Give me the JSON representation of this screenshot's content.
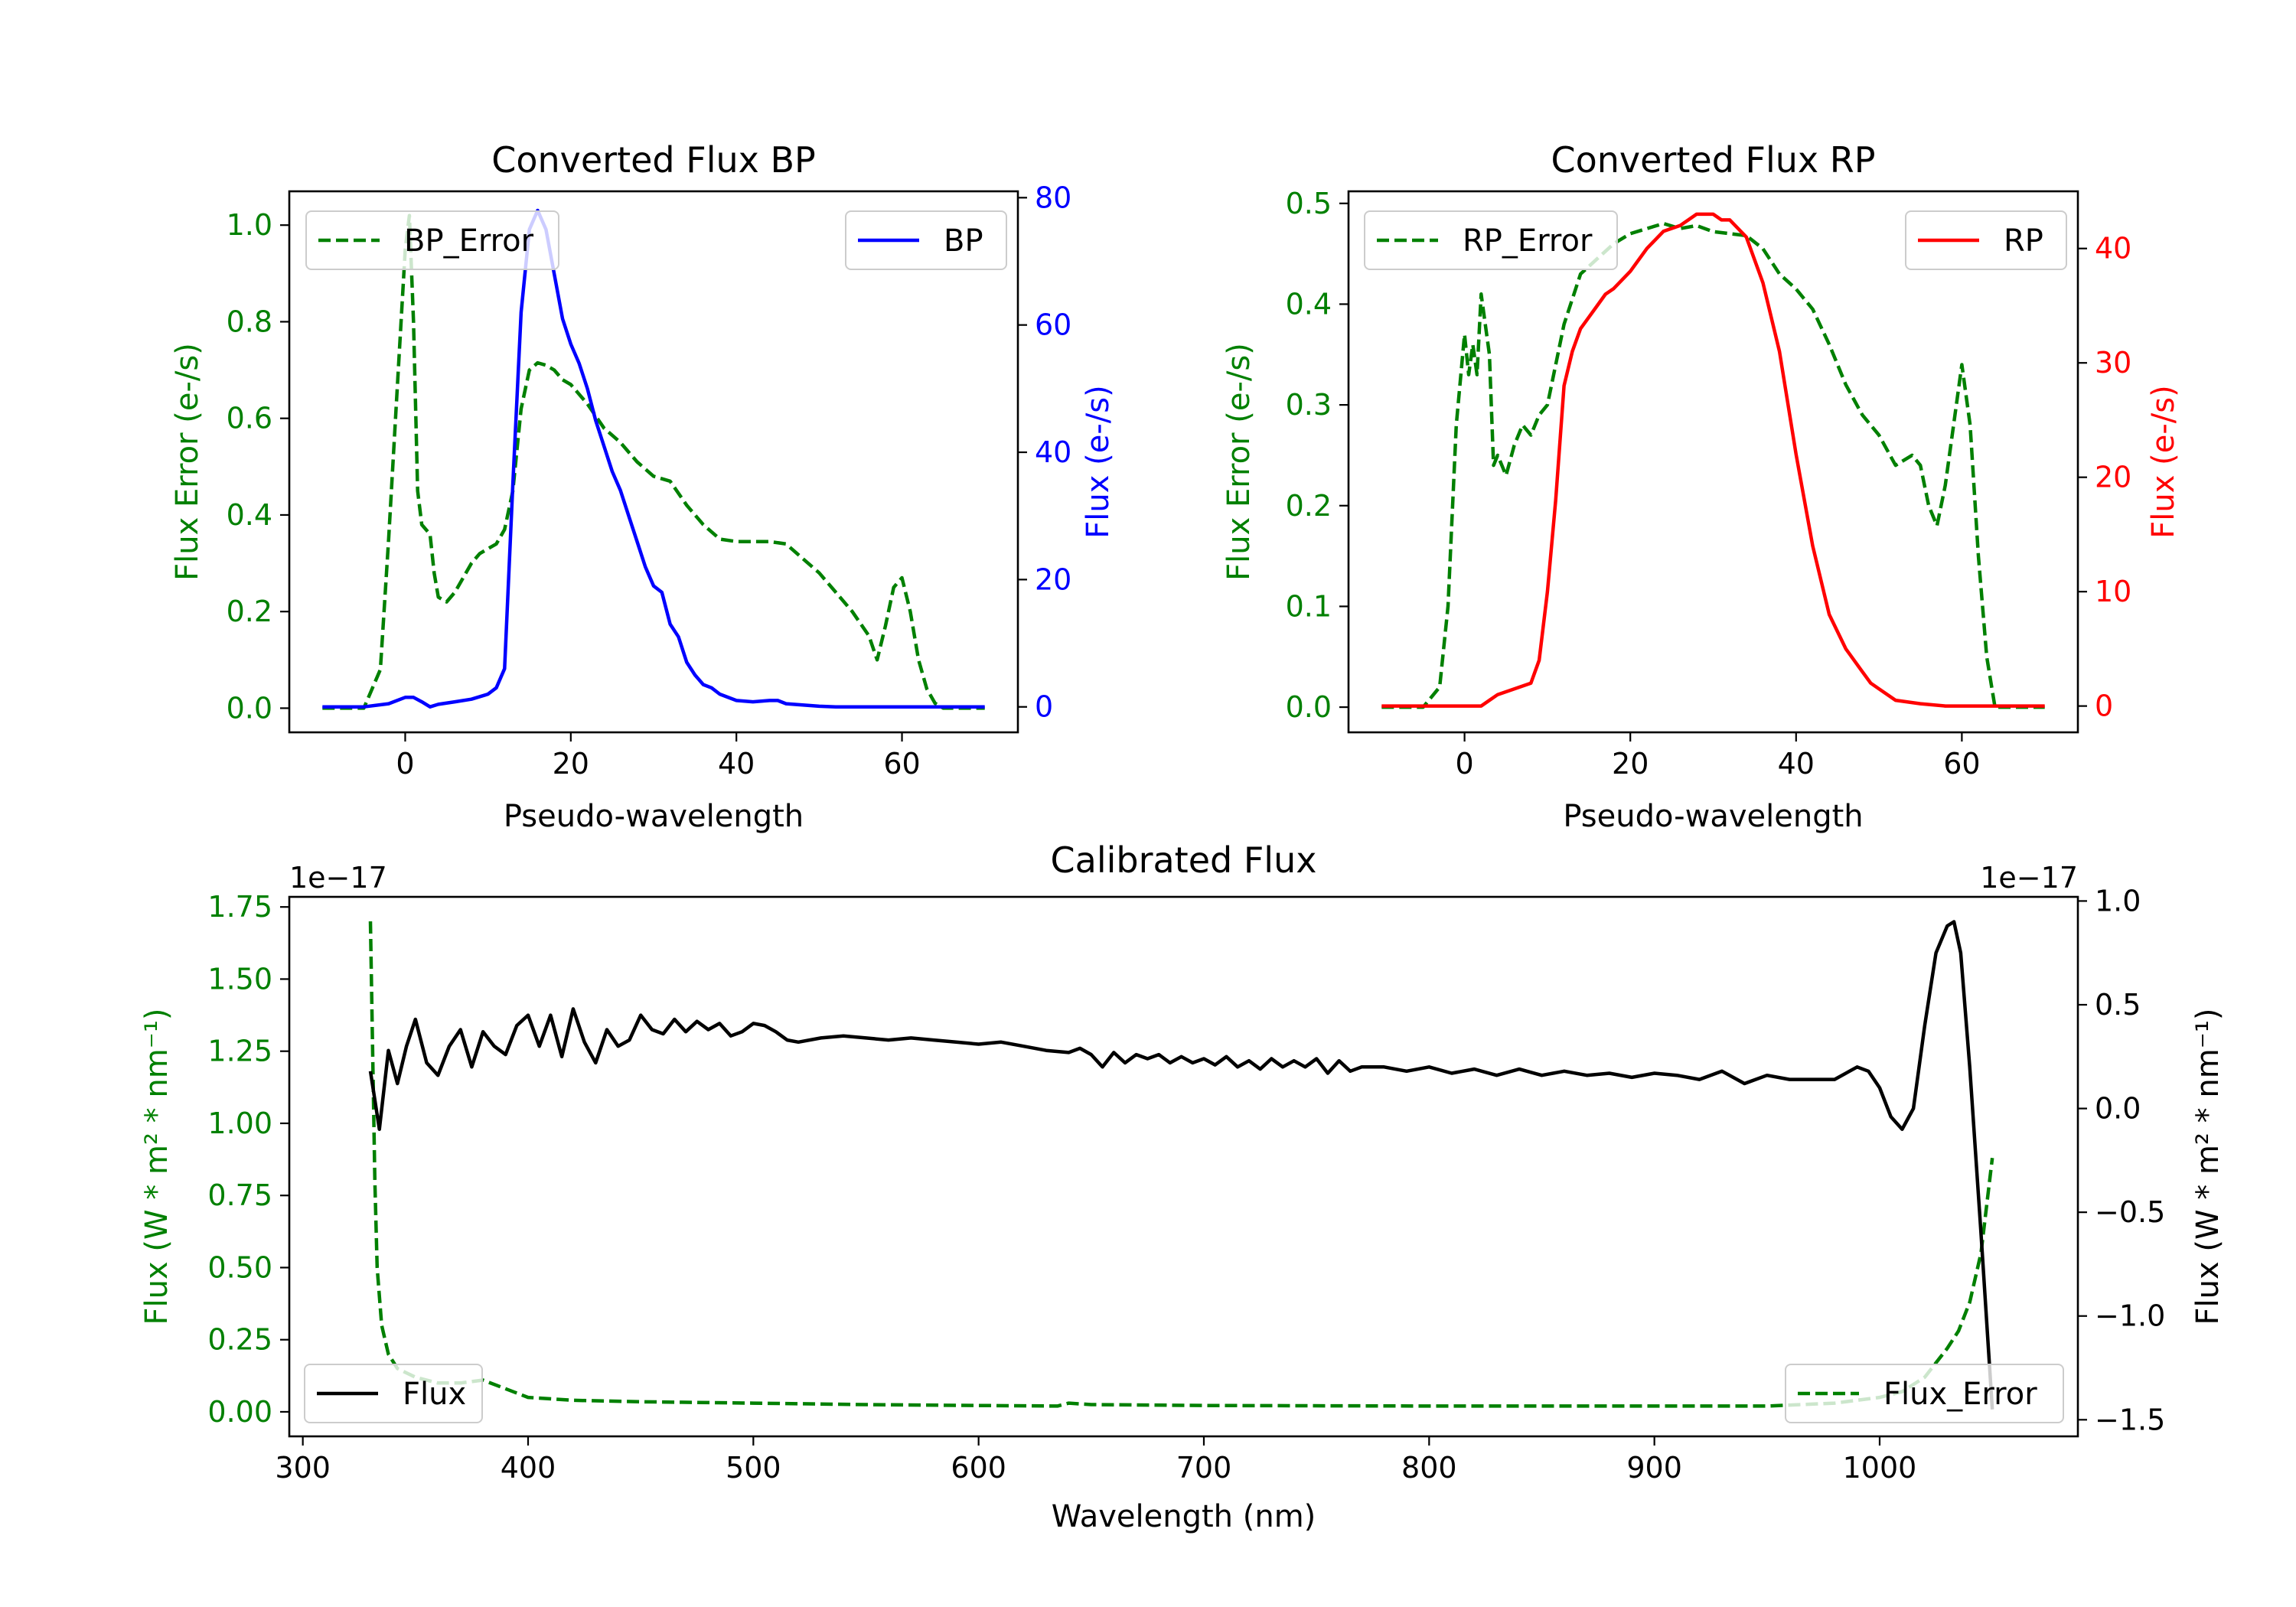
{
  "colors": {
    "error": "#008000",
    "bp": "#0000ff",
    "rp": "#ff0000",
    "flux": "#000000"
  },
  "chart_data": [
    {
      "type": "line",
      "title": "Converted Flux BP",
      "xlabel": "Pseudo-wavelength",
      "ylabel_left": "Flux Error (e-/s)",
      "ylabel_right": "Flux (e-/s)",
      "xlim": [
        -14,
        74
      ],
      "ylim_left": [
        -0.05,
        1.07
      ],
      "ylim_right": [
        -4,
        81
      ],
      "xticks": [
        0,
        20,
        40,
        60
      ],
      "yticks_left": [
        "0.0",
        "0.2",
        "0.4",
        "0.6",
        "0.8",
        "1.0"
      ],
      "yticks_right": [
        "0",
        "20",
        "40",
        "60",
        "80"
      ],
      "legend_left": "BP_Error",
      "legend_right": "BP",
      "series": [
        {
          "name": "BP_Error",
          "axis": "left",
          "style": "dashed",
          "color": "#008000",
          "x": [
            -10,
            -5,
            -3,
            -2,
            -1,
            0,
            0.5,
            1,
            1.5,
            2,
            3,
            3.5,
            4,
            5,
            6,
            7,
            8,
            9,
            10,
            11,
            12,
            13,
            14,
            15,
            16,
            17,
            18,
            19,
            20,
            22,
            24,
            26,
            28,
            30,
            32,
            34,
            36,
            38,
            40,
            42,
            44,
            46,
            48,
            50,
            52,
            54,
            56,
            57,
            58,
            59,
            60,
            61,
            62,
            63,
            64,
            65,
            68,
            70
          ],
          "y": [
            0.0,
            0.0,
            0.08,
            0.35,
            0.65,
            0.95,
            1.02,
            0.8,
            0.45,
            0.38,
            0.36,
            0.28,
            0.23,
            0.22,
            0.24,
            0.27,
            0.3,
            0.32,
            0.33,
            0.34,
            0.37,
            0.45,
            0.62,
            0.7,
            0.715,
            0.71,
            0.7,
            0.68,
            0.67,
            0.63,
            0.58,
            0.55,
            0.51,
            0.48,
            0.47,
            0.42,
            0.38,
            0.35,
            0.345,
            0.345,
            0.345,
            0.34,
            0.31,
            0.28,
            0.24,
            0.2,
            0.15,
            0.1,
            0.17,
            0.25,
            0.27,
            0.2,
            0.1,
            0.04,
            0.01,
            0.0,
            0.0,
            0.0
          ]
        },
        {
          "name": "BP",
          "axis": "right",
          "style": "solid",
          "color": "#0000ff",
          "x": [
            -10,
            -5,
            -2,
            0,
            1,
            2,
            3,
            4,
            6,
            8,
            10,
            11,
            12,
            13,
            14,
            15,
            16,
            17,
            18,
            19,
            20,
            21,
            22,
            23,
            24,
            25,
            26,
            27,
            28,
            29,
            30,
            31,
            32,
            33,
            34,
            35,
            36,
            37,
            38,
            40,
            42,
            44,
            45,
            46,
            48,
            50,
            52,
            55,
            58,
            60,
            62,
            65,
            70
          ],
          "y": [
            0,
            0,
            0.5,
            1.5,
            1.5,
            0.8,
            0,
            0.4,
            0.8,
            1.2,
            2,
            3,
            6,
            35,
            62,
            75,
            78,
            75,
            68,
            61,
            57,
            54,
            50,
            45,
            41,
            37,
            34,
            30,
            26,
            22,
            19,
            18,
            13,
            11,
            7,
            5,
            3.5,
            3,
            2,
            1,
            0.8,
            1,
            1,
            0.5,
            0.3,
            0.1,
            0,
            0,
            0,
            0,
            0,
            0,
            0
          ]
        }
      ]
    },
    {
      "type": "line",
      "title": "Converted Flux RP",
      "xlabel": "Pseudo-wavelength",
      "ylabel_left": "Flux Error (e-/s)",
      "ylabel_right": "Flux (e-/s)",
      "xlim": [
        -14,
        74
      ],
      "ylim_left": [
        -0.025,
        0.512
      ],
      "ylim_right": [
        -2.3,
        45
      ],
      "xticks": [
        0,
        20,
        40,
        60
      ],
      "yticks_left": [
        "0.0",
        "0.1",
        "0.2",
        "0.3",
        "0.4",
        "0.5"
      ],
      "yticks_right": [
        "0",
        "10",
        "20",
        "30",
        "40"
      ],
      "legend_left": "RP_Error",
      "legend_right": "RP",
      "series": [
        {
          "name": "RP_Error",
          "axis": "left",
          "style": "dashed",
          "color": "#008000",
          "x": [
            -10,
            -5,
            -3,
            -2,
            -1,
            0,
            0.5,
            1,
            1.5,
            2,
            3,
            3.5,
            4,
            5,
            6,
            7,
            8,
            9,
            10,
            12,
            14,
            16,
            18,
            20,
            22,
            24,
            26,
            28,
            30,
            32,
            34,
            36,
            38,
            40,
            42,
            44,
            46,
            48,
            50,
            52,
            54,
            55,
            56,
            57,
            58,
            59,
            60,
            61,
            62,
            63,
            64,
            65,
            70
          ],
          "y": [
            0.0,
            0.0,
            0.02,
            0.1,
            0.28,
            0.37,
            0.33,
            0.36,
            0.33,
            0.41,
            0.35,
            0.24,
            0.25,
            0.23,
            0.26,
            0.28,
            0.27,
            0.29,
            0.3,
            0.38,
            0.43,
            0.445,
            0.46,
            0.47,
            0.475,
            0.48,
            0.475,
            0.478,
            0.472,
            0.47,
            0.468,
            0.455,
            0.43,
            0.415,
            0.395,
            0.36,
            0.32,
            0.29,
            0.27,
            0.24,
            0.25,
            0.24,
            0.2,
            0.18,
            0.22,
            0.28,
            0.34,
            0.28,
            0.15,
            0.05,
            0.0,
            0.0,
            0.0
          ]
        },
        {
          "name": "RP",
          "axis": "right",
          "style": "solid",
          "color": "#ff0000",
          "x": [
            -10,
            -2,
            0,
            2,
            3,
            4,
            6,
            8,
            9,
            10,
            11,
            12,
            13,
            14,
            15,
            16,
            17,
            18,
            20,
            22,
            24,
            26,
            27,
            28,
            29,
            30,
            31,
            32,
            34,
            36,
            38,
            40,
            42,
            44,
            46,
            48,
            49,
            50,
            52,
            55,
            58,
            60,
            65,
            70
          ],
          "y": [
            0,
            0,
            0,
            0,
            0.5,
            1,
            1.5,
            2,
            4,
            10,
            18,
            28,
            31,
            33,
            34,
            35,
            36,
            36.5,
            38,
            40,
            41.5,
            42,
            42.5,
            43,
            43,
            43,
            42.5,
            42.5,
            41,
            37,
            31,
            22,
            14,
            8,
            5,
            3,
            2,
            1.5,
            0.5,
            0.2,
            0,
            0,
            0,
            0
          ]
        }
      ]
    },
    {
      "type": "line",
      "title": "Calibrated Flux",
      "xlabel": "Wavelength (nm)",
      "ylabel_left": "Flux (W * m² * nm⁻¹)",
      "ylabel_right": "Flux (W * m² * nm⁻¹)",
      "offset_left": "1e−17",
      "offset_right": "1e−17",
      "xlim": [
        294,
        1088
      ],
      "ylim_left": [
        -0.085,
        1.785
      ],
      "ylim_right": [
        -1.58,
        1.02
      ],
      "xticks": [
        300,
        400,
        500,
        600,
        700,
        800,
        900,
        1000
      ],
      "yticks_left": [
        "0.00",
        "0.25",
        "0.50",
        "0.75",
        "1.00",
        "1.25",
        "1.50",
        "1.75"
      ],
      "yticks_right": [
        "−1.5",
        "−1.0",
        "−0.5",
        "0.0",
        "0.5",
        "1.0"
      ],
      "legend_left": "Flux",
      "legend_right": "Flux_Error",
      "series": [
        {
          "name": "Flux_Error",
          "axis": "left",
          "style": "dashed",
          "color": "#008000",
          "x": [
            330,
            331,
            332,
            333,
            335,
            338,
            342,
            350,
            360,
            370,
            380,
            390,
            400,
            420,
            450,
            500,
            550,
            600,
            635,
            640,
            650,
            700,
            800,
            900,
            950,
            980,
            1000,
            1010,
            1020,
            1025,
            1030,
            1035,
            1040,
            1045,
            1050
          ],
          "y": [
            1.7,
            1.25,
            0.8,
            0.5,
            0.3,
            0.2,
            0.15,
            0.12,
            0.1,
            0.1,
            0.11,
            0.08,
            0.05,
            0.04,
            0.035,
            0.03,
            0.025,
            0.022,
            0.02,
            0.03,
            0.025,
            0.022,
            0.02,
            0.02,
            0.02,
            0.03,
            0.05,
            0.07,
            0.12,
            0.17,
            0.22,
            0.28,
            0.38,
            0.55,
            0.88
          ]
        },
        {
          "name": "Flux",
          "axis": "right",
          "style": "solid",
          "color": "#000000",
          "x": [
            330,
            334,
            338,
            342,
            346,
            350,
            355,
            360,
            365,
            370,
            375,
            380,
            385,
            390,
            395,
            400,
            405,
            410,
            415,
            420,
            425,
            430,
            435,
            440,
            445,
            450,
            455,
            460,
            465,
            470,
            475,
            480,
            485,
            490,
            495,
            500,
            505,
            510,
            515,
            520,
            530,
            540,
            550,
            560,
            570,
            580,
            590,
            600,
            610,
            620,
            630,
            640,
            645,
            650,
            655,
            660,
            665,
            670,
            675,
            680,
            685,
            690,
            695,
            700,
            705,
            710,
            715,
            720,
            725,
            730,
            735,
            740,
            745,
            750,
            755,
            760,
            765,
            770,
            780,
            790,
            800,
            810,
            820,
            830,
            840,
            850,
            860,
            870,
            880,
            890,
            900,
            910,
            920,
            930,
            940,
            950,
            960,
            970,
            980,
            990,
            995,
            1000,
            1005,
            1010,
            1015,
            1020,
            1025,
            1030,
            1033,
            1036,
            1040,
            1045,
            1050
          ],
          "y": [
            0.18,
            -0.1,
            0.28,
            0.12,
            0.3,
            0.43,
            0.22,
            0.16,
            0.3,
            0.38,
            0.2,
            0.37,
            0.3,
            0.26,
            0.4,
            0.45,
            0.3,
            0.45,
            0.25,
            0.48,
            0.32,
            0.22,
            0.38,
            0.3,
            0.33,
            0.45,
            0.38,
            0.36,
            0.43,
            0.37,
            0.42,
            0.38,
            0.41,
            0.35,
            0.37,
            0.41,
            0.4,
            0.37,
            0.33,
            0.32,
            0.34,
            0.35,
            0.34,
            0.33,
            0.34,
            0.33,
            0.32,
            0.31,
            0.32,
            0.3,
            0.28,
            0.27,
            0.29,
            0.26,
            0.2,
            0.27,
            0.22,
            0.26,
            0.24,
            0.26,
            0.22,
            0.25,
            0.22,
            0.24,
            0.21,
            0.25,
            0.2,
            0.23,
            0.19,
            0.24,
            0.2,
            0.23,
            0.2,
            0.24,
            0.17,
            0.23,
            0.18,
            0.2,
            0.2,
            0.18,
            0.2,
            0.17,
            0.19,
            0.16,
            0.19,
            0.16,
            0.18,
            0.16,
            0.17,
            0.15,
            0.17,
            0.16,
            0.14,
            0.18,
            0.12,
            0.16,
            0.14,
            0.14,
            0.14,
            0.2,
            0.18,
            0.1,
            -0.04,
            -0.1,
            0.0,
            0.4,
            0.75,
            0.88,
            0.9,
            0.75,
            0.2,
            -0.6,
            -1.45
          ]
        }
      ]
    }
  ]
}
